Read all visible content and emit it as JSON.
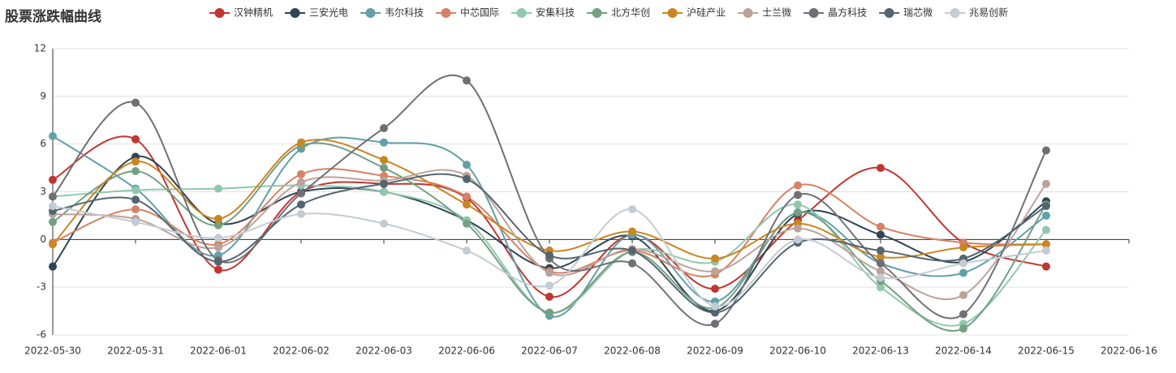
{
  "chart_data": {
    "type": "line",
    "title": "股票涨跌幅曲线",
    "categories": [
      "2022-05-30",
      "2022-05-31",
      "2022-06-01",
      "2022-06-02",
      "2022-06-03",
      "2022-06-06",
      "2022-06-07",
      "2022-06-08",
      "2022-06-09",
      "2022-06-10",
      "2022-06-13",
      "2022-06-14",
      "2022-06-15",
      "2022-06-16"
    ],
    "ylim": [
      -6,
      12
    ],
    "yticks": [
      -6,
      -3,
      0,
      3,
      6,
      9,
      12
    ],
    "grid": true,
    "smooth": true,
    "series": [
      {
        "name": "汉钟精机",
        "color": "#c23531",
        "values": [
          3.75,
          6.3,
          -1.9,
          3.0,
          3.5,
          2.6,
          -3.6,
          0.3,
          -3.1,
          1.2,
          4.5,
          -0.2,
          -1.7,
          null
        ]
      },
      {
        "name": "三安光电",
        "color": "#2f4554",
        "values": [
          -1.7,
          5.2,
          1.0,
          3.0,
          3.0,
          1.2,
          -1.8,
          0.2,
          -4.5,
          1.6,
          0.3,
          -1.4,
          2.4,
          null
        ]
      },
      {
        "name": "韦尔科技",
        "color": "#61a0a8",
        "values": [
          6.5,
          3.2,
          -1.0,
          5.7,
          6.1,
          4.7,
          -4.8,
          0.3,
          -3.9,
          1.7,
          -1.5,
          -2.1,
          1.5,
          null
        ]
      },
      {
        "name": "中芯国际",
        "color": "#d48265",
        "values": [
          -0.2,
          1.9,
          -0.3,
          4.1,
          4.0,
          2.7,
          -2.0,
          -0.7,
          -2.2,
          3.4,
          0.8,
          -0.2,
          -0.3,
          null
        ]
      },
      {
        "name": "安集科技",
        "color": "#91c7ae",
        "values": [
          2.7,
          3.1,
          3.2,
          3.4,
          3.0,
          1.2,
          -4.6,
          -0.7,
          -1.4,
          2.2,
          -3.0,
          -5.3,
          0.6,
          null
        ]
      },
      {
        "name": "北方华创",
        "color": "#749f83",
        "values": [
          1.1,
          4.3,
          0.9,
          5.9,
          4.5,
          1.0,
          -4.6,
          -0.8,
          -4.3,
          1.7,
          -2.6,
          -5.6,
          2.2,
          null
        ]
      },
      {
        "name": "沪硅产业",
        "color": "#ca8622",
        "values": [
          -0.3,
          4.9,
          1.3,
          6.1,
          5.0,
          2.2,
          -0.7,
          0.5,
          -1.2,
          1.0,
          -1.1,
          -0.5,
          -0.3,
          null
        ]
      },
      {
        "name": "士兰微",
        "color": "#bda29a",
        "values": [
          1.6,
          1.3,
          -0.5,
          3.6,
          3.7,
          4.0,
          -2.1,
          -0.6,
          -2.0,
          0.7,
          -2.0,
          -3.5,
          3.5,
          null
        ]
      },
      {
        "name": "晶方科技",
        "color": "#6e7074",
        "values": [
          2.7,
          8.6,
          -1.3,
          2.9,
          7.0,
          10.0,
          -1.2,
          -1.5,
          -5.3,
          2.8,
          -1.5,
          -4.7,
          5.6,
          null
        ]
      },
      {
        "name": "瑞芯微",
        "color": "#546570",
        "values": [
          1.8,
          2.5,
          -1.4,
          2.2,
          3.5,
          3.8,
          -1.0,
          -0.7,
          -4.6,
          -0.2,
          -0.7,
          -1.2,
          2.1,
          null
        ]
      },
      {
        "name": "兆易创新",
        "color": "#c4ccd3",
        "values": [
          2.1,
          1.1,
          0.1,
          1.6,
          1.0,
          -0.7,
          -2.9,
          1.9,
          -4.2,
          0.0,
          -2.4,
          -1.5,
          -0.7,
          null
        ]
      }
    ]
  }
}
